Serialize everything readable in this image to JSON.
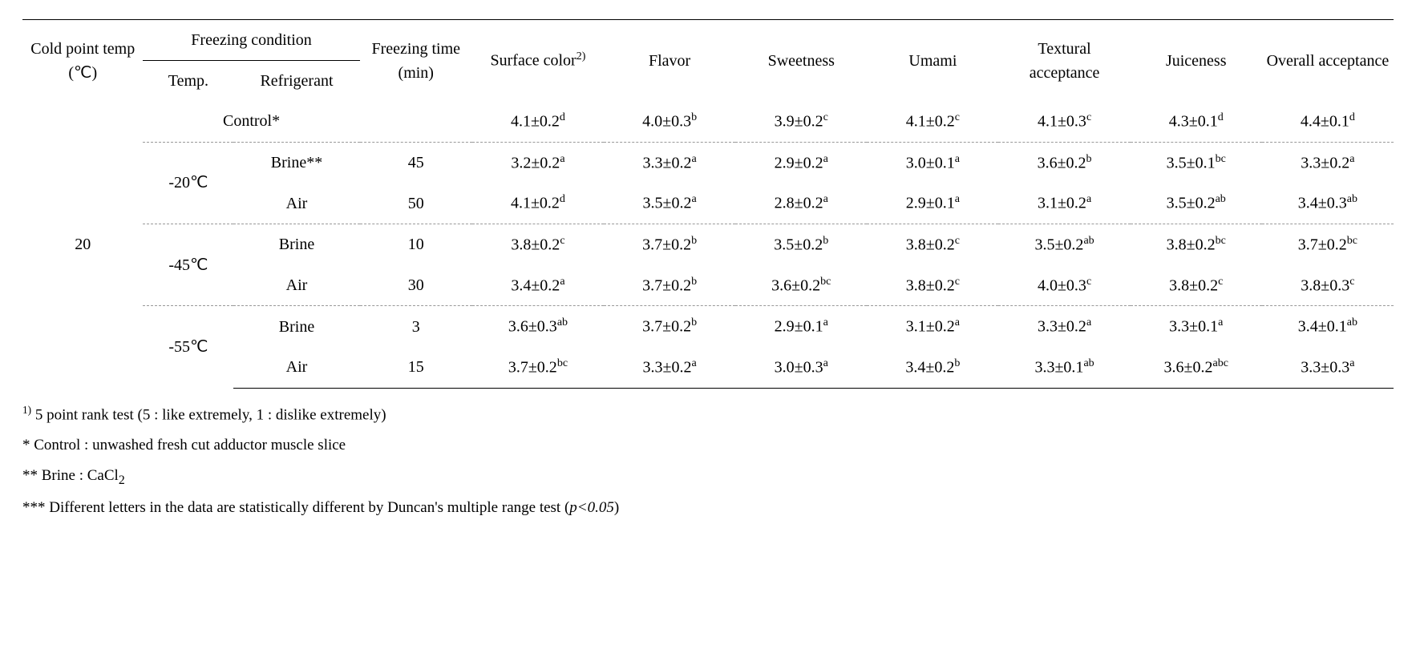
{
  "header": {
    "cold_point": "Cold point temp (℃)",
    "freezing_condition": "Freezing condition",
    "temp": "Temp.",
    "refrigerant": "Refrigerant",
    "freezing_time": "Freezing time (min)",
    "surface_color_pre": "Surface color",
    "surface_color_sup": "2)",
    "flavor": "Flavor",
    "sweetness": "Sweetness",
    "umami": "Umami",
    "textural": "Textural acceptance",
    "juiceness": "Juiceness",
    "overall": "Overall acceptance"
  },
  "body": {
    "cold_point_value": "20",
    "control_label": "Control*",
    "temps": {
      "t20": "-20℃",
      "t45": "-45℃",
      "t55": "-55℃"
    },
    "refr": {
      "brine_star": "Brine**",
      "brine": "Brine",
      "air": "Air"
    },
    "rows": {
      "control": {
        "ftime": "",
        "surface": {
          "v": "4.1±0.2",
          "s": "d"
        },
        "flavor": {
          "v": "4.0±0.3",
          "s": "b"
        },
        "sweet": {
          "v": "3.9±0.2",
          "s": "c"
        },
        "umami": {
          "v": "4.1±0.2",
          "s": "c"
        },
        "texture": {
          "v": "4.1±0.3",
          "s": "c"
        },
        "juice": {
          "v": "4.3±0.1",
          "s": "d"
        },
        "overall": {
          "v": "4.4±0.1",
          "s": "d"
        }
      },
      "r1": {
        "ftime": "45",
        "surface": {
          "v": "3.2±0.2",
          "s": "a"
        },
        "flavor": {
          "v": "3.3±0.2",
          "s": "a"
        },
        "sweet": {
          "v": "2.9±0.2",
          "s": "a"
        },
        "umami": {
          "v": "3.0±0.1",
          "s": "a"
        },
        "texture": {
          "v": "3.6±0.2",
          "s": "b"
        },
        "juice": {
          "v": "3.5±0.1",
          "s": "bc"
        },
        "overall": {
          "v": "3.3±0.2",
          "s": "a"
        }
      },
      "r2": {
        "ftime": "50",
        "surface": {
          "v": "4.1±0.2",
          "s": "d"
        },
        "flavor": {
          "v": "3.5±0.2",
          "s": "a"
        },
        "sweet": {
          "v": "2.8±0.2",
          "s": "a"
        },
        "umami": {
          "v": "2.9±0.1",
          "s": "a"
        },
        "texture": {
          "v": "3.1±0.2",
          "s": "a"
        },
        "juice": {
          "v": "3.5±0.2",
          "s": "ab"
        },
        "overall": {
          "v": "3.4±0.3",
          "s": "ab"
        }
      },
      "r3": {
        "ftime": "10",
        "surface": {
          "v": "3.8±0.2",
          "s": "c"
        },
        "flavor": {
          "v": "3.7±0.2",
          "s": "b"
        },
        "sweet": {
          "v": "3.5±0.2",
          "s": "b"
        },
        "umami": {
          "v": "3.8±0.2",
          "s": "c"
        },
        "texture": {
          "v": "3.5±0.2",
          "s": "ab"
        },
        "juice": {
          "v": "3.8±0.2",
          "s": "bc"
        },
        "overall": {
          "v": "3.7±0.2",
          "s": "bc"
        }
      },
      "r4": {
        "ftime": "30",
        "surface": {
          "v": "3.4±0.2",
          "s": "a"
        },
        "flavor": {
          "v": "3.7±0.2",
          "s": "b"
        },
        "sweet": {
          "v": "3.6±0.2",
          "s": "bc"
        },
        "umami": {
          "v": "3.8±0.2",
          "s": "c"
        },
        "texture": {
          "v": "4.0±0.3",
          "s": "c"
        },
        "juice": {
          "v": "3.8±0.2",
          "s": "c"
        },
        "overall": {
          "v": "3.8±0.3",
          "s": "c"
        }
      },
      "r5": {
        "ftime": "3",
        "surface": {
          "v": "3.6±0.3",
          "s": "ab"
        },
        "flavor": {
          "v": "3.7±0.2",
          "s": "b"
        },
        "sweet": {
          "v": "2.9±0.1",
          "s": "a"
        },
        "umami": {
          "v": "3.1±0.2",
          "s": "a"
        },
        "texture": {
          "v": "3.3±0.2",
          "s": "a"
        },
        "juice": {
          "v": "3.3±0.1",
          "s": "a"
        },
        "overall": {
          "v": "3.4±0.1",
          "s": "ab"
        }
      },
      "r6": {
        "ftime": "15",
        "surface": {
          "v": "3.7±0.2",
          "s": "bc"
        },
        "flavor": {
          "v": "3.3±0.2",
          "s": "a"
        },
        "sweet": {
          "v": "3.0±0.3",
          "s": "a"
        },
        "umami": {
          "v": "3.4±0.2",
          "s": "b"
        },
        "texture": {
          "v": "3.3±0.1",
          "s": "ab"
        },
        "juice": {
          "v": "3.6±0.2",
          "s": "abc"
        },
        "overall": {
          "v": "3.3±0.3",
          "s": "a"
        }
      }
    }
  },
  "footnotes": {
    "f1_sup": "1)",
    "f1": " 5 point rank test (5 : like extremely, 1 : dislike extremely)",
    "f2": "* Control : unwashed fresh cut adductor muscle slice",
    "f3_pre": "** Brine : CaCl",
    "f3_sub": "2",
    "f4_pre": "*** Different letters in the data are statistically different by Duncan's multiple range test (",
    "f4_italic": "p<0.05",
    "f4_post": ")"
  }
}
